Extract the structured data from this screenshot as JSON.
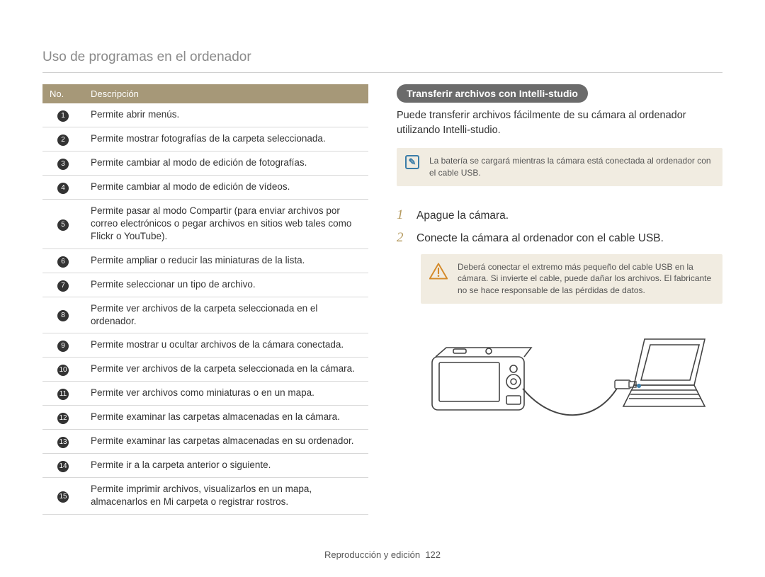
{
  "header": {
    "title": "Uso de programas en el ordenador"
  },
  "table": {
    "col_no": "No.",
    "col_desc": "Descripción",
    "rows": [
      {
        "n": "1",
        "d": "Permite abrir menús."
      },
      {
        "n": "2",
        "d": "Permite mostrar fotografías de la carpeta seleccionada."
      },
      {
        "n": "3",
        "d": "Permite cambiar al modo de edición de fotografías."
      },
      {
        "n": "4",
        "d": "Permite cambiar al modo de edición de vídeos."
      },
      {
        "n": "5",
        "d": "Permite pasar al modo Compartir (para enviar archivos por correo electrónicos o pegar archivos en sitios web tales como Flickr o YouTube)."
      },
      {
        "n": "6",
        "d": "Permite ampliar o reducir las miniaturas de la lista."
      },
      {
        "n": "7",
        "d": "Permite seleccionar un tipo de archivo."
      },
      {
        "n": "8",
        "d": "Permite ver archivos de la carpeta seleccionada en el ordenador."
      },
      {
        "n": "9",
        "d": "Permite mostrar u ocultar archivos de la cámara conectada."
      },
      {
        "n": "10",
        "d": "Permite ver archivos de la carpeta seleccionada en la cámara."
      },
      {
        "n": "11",
        "d": "Permite ver archivos como miniaturas o en un mapa."
      },
      {
        "n": "12",
        "d": "Permite examinar las carpetas almacenadas en la cámara."
      },
      {
        "n": "13",
        "d": "Permite examinar las carpetas almacenadas en su ordenador."
      },
      {
        "n": "14",
        "d": "Permite ir a la carpeta anterior o siguiente."
      },
      {
        "n": "15",
        "d": "Permite imprimir archivos, visualizarlos en un mapa, almacenarlos en Mi carpeta o registrar rostros."
      }
    ]
  },
  "right": {
    "section_title": "Transferir archivos con Intelli-studio",
    "intro": "Puede transferir archivos fácilmente de su cámara al ordenador utilizando Intelli-studio.",
    "note": "La batería se cargará mientras la cámara está conectada al ordenador con el cable USB.",
    "steps": [
      {
        "n": "1",
        "t": "Apague la cámara."
      },
      {
        "n": "2",
        "t": "Conecte la cámara al ordenador con el cable USB."
      }
    ],
    "warning": "Deberá conectar el extremo más pequeño del cable USB en la cámara. Si invierte el cable, puede dañar los archivos. El fabricante no se hace responsable de las pérdidas de datos."
  },
  "footer": {
    "section": "Reproducción y edición",
    "page": "122"
  },
  "colors": {
    "header_bg": "#a69878",
    "accent_step": "#b59a5f",
    "note_bg": "#f1ece1",
    "note_icon": "#3b7da8",
    "warn_icon": "#d48a2a",
    "bullet_bg": "#333333"
  }
}
